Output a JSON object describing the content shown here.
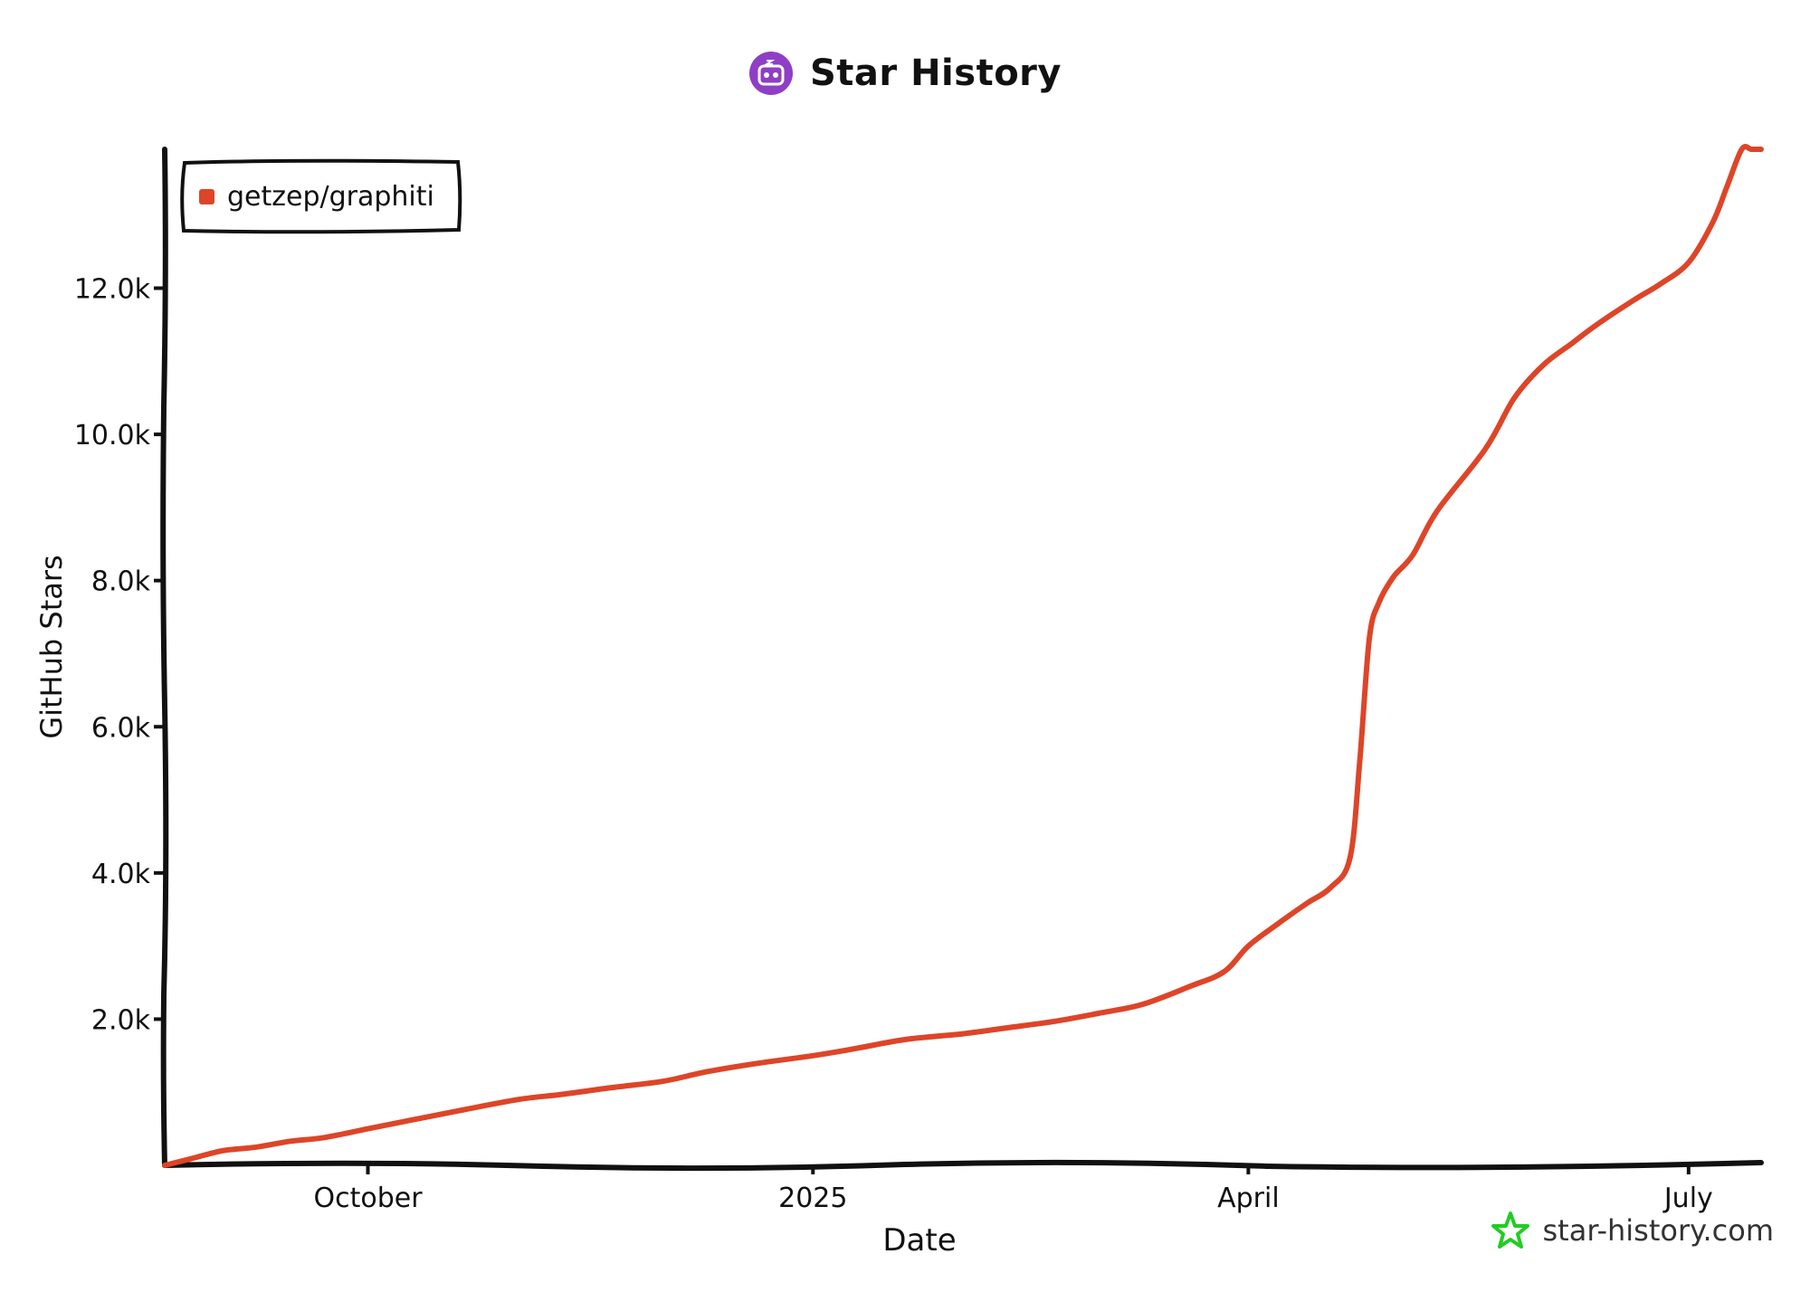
{
  "header": {
    "title": "Star History",
    "logo_icon": "robot-face-icon",
    "logo_color": "#8e3fc6"
  },
  "watermark": {
    "text": "star-history.com",
    "icon": "star-outline-icon",
    "icon_color": "#22cc22"
  },
  "chart_data": {
    "type": "line",
    "title": "",
    "xlabel": "Date",
    "ylabel": "GitHub Stars",
    "x_ticks": [
      "October",
      "2025",
      "April",
      "July"
    ],
    "x_tick_dates": [
      "2024-10-01",
      "2025-01-01",
      "2025-04-01",
      "2025-07-01"
    ],
    "xlim": [
      "2024-08-20",
      "2025-07-16"
    ],
    "ylim": [
      0,
      13900
    ],
    "y_ticks": [
      2000,
      4000,
      6000,
      8000,
      10000,
      12000
    ],
    "y_tick_labels": [
      "2.0k",
      "4.0k",
      "6.0k",
      "8.0k",
      "10.0k",
      "12.0k"
    ],
    "grid": false,
    "legend_position": "top-left",
    "series": [
      {
        "name": "getzep/graphiti",
        "color": "#dd4528",
        "x": [
          "2024-08-20",
          "2024-08-26",
          "2024-09-01",
          "2024-09-08",
          "2024-09-15",
          "2024-09-22",
          "2024-10-01",
          "2024-10-10",
          "2024-10-20",
          "2024-11-01",
          "2024-11-10",
          "2024-11-20",
          "2024-12-01",
          "2024-12-10",
          "2024-12-20",
          "2025-01-01",
          "2025-01-10",
          "2025-01-20",
          "2025-02-01",
          "2025-02-10",
          "2025-02-20",
          "2025-03-01",
          "2025-03-10",
          "2025-03-20",
          "2025-03-27",
          "2025-04-01",
          "2025-04-07",
          "2025-04-13",
          "2025-04-18",
          "2025-04-22",
          "2025-04-24",
          "2025-04-26",
          "2025-04-28",
          "2025-05-01",
          "2025-05-05",
          "2025-05-10",
          "2025-05-20",
          "2025-05-26",
          "2025-06-01",
          "2025-06-07",
          "2025-06-12",
          "2025-06-20",
          "2025-06-25",
          "2025-07-01",
          "2025-07-06",
          "2025-07-09",
          "2025-07-12",
          "2025-07-14",
          "2025-07-16"
        ],
        "values": [
          0,
          100,
          200,
          250,
          330,
          380,
          500,
          620,
          750,
          900,
          970,
          1060,
          1150,
          1280,
          1390,
          1500,
          1600,
          1720,
          1800,
          1880,
          1970,
          2080,
          2200,
          2450,
          2650,
          3000,
          3300,
          3580,
          3800,
          4200,
          5500,
          7200,
          7700,
          8050,
          8350,
          8950,
          9800,
          10500,
          10950,
          11250,
          11500,
          11850,
          12050,
          12350,
          12900,
          13400,
          13900,
          13900,
          13900
        ]
      }
    ]
  }
}
